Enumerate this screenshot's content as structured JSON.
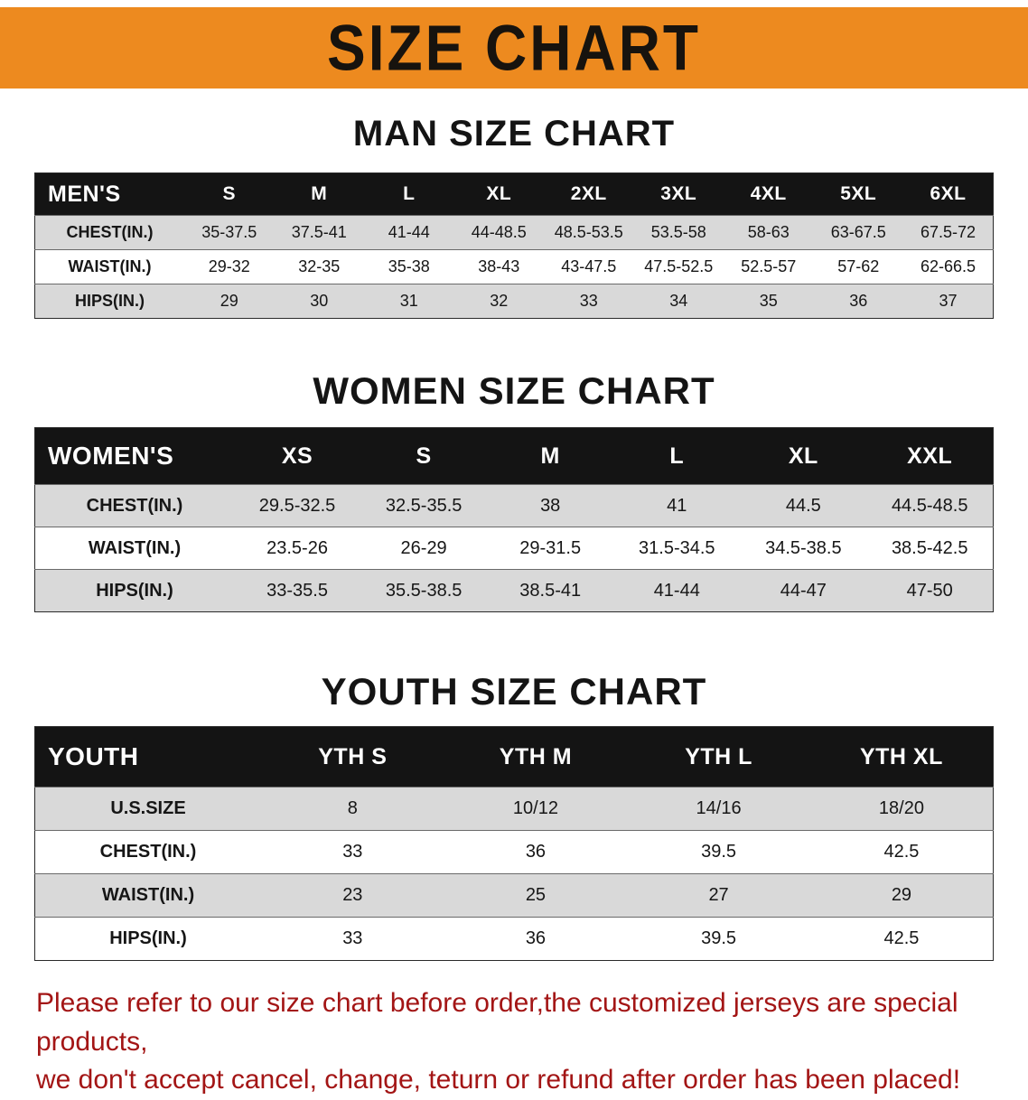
{
  "banner": {
    "title": "SIZE CHART"
  },
  "colors": {
    "banner-bg": "#ED8A1F",
    "table-header-bg": "#141414",
    "row-stripe": "#d9d9d9",
    "footer-red": "#A31515"
  },
  "sections": [
    {
      "heading": "MAN SIZE CHART",
      "table": {
        "header": [
          "MEN'S",
          "S",
          "M",
          "L",
          "XL",
          "2XL",
          "3XL",
          "4XL",
          "5XL",
          "6XL"
        ],
        "rows": [
          [
            "CHEST(IN.)",
            "35-37.5",
            "37.5-41",
            "41-44",
            "44-48.5",
            "48.5-53.5",
            "53.5-58",
            "58-63",
            "63-67.5",
            "67.5-72"
          ],
          [
            "WAIST(IN.)",
            "29-32",
            "32-35",
            "35-38",
            "38-43",
            "43-47.5",
            "47.5-52.5",
            "52.5-57",
            "57-62",
            "62-66.5"
          ],
          [
            "HIPS(IN.)",
            "29",
            "30",
            "31",
            "32",
            "33",
            "34",
            "35",
            "36",
            "37"
          ]
        ]
      }
    },
    {
      "heading": "WOMEN SIZE CHART",
      "table": {
        "header": [
          "WOMEN'S",
          "XS",
          "S",
          "M",
          "L",
          "XL",
          "XXL"
        ],
        "rows": [
          [
            "CHEST(IN.)",
            "29.5-32.5",
            "32.5-35.5",
            "38",
            "41",
            "44.5",
            "44.5-48.5"
          ],
          [
            "WAIST(IN.)",
            "23.5-26",
            "26-29",
            "29-31.5",
            "31.5-34.5",
            "34.5-38.5",
            "38.5-42.5"
          ],
          [
            "HIPS(IN.)",
            "33-35.5",
            "35.5-38.5",
            "38.5-41",
            "41-44",
            "44-47",
            "47-50"
          ]
        ]
      }
    },
    {
      "heading": "YOUTH SIZE CHART",
      "table": {
        "header": [
          "YOUTH",
          "YTH S",
          "YTH M",
          "YTH L",
          "YTH XL"
        ],
        "rows": [
          [
            "U.S.SIZE",
            "8",
            "10/12",
            "14/16",
            "18/20"
          ],
          [
            "CHEST(IN.)",
            "33",
            "36",
            "39.5",
            "42.5"
          ],
          [
            "WAIST(IN.)",
            "23",
            "25",
            "27",
            "29"
          ],
          [
            "HIPS(IN.)",
            "33",
            "36",
            "39.5",
            "42.5"
          ]
        ]
      }
    }
  ],
  "footer": {
    "line1": "Please refer to our size chart before order,the customized jerseys are special products,",
    "line2": "we don't accept cancel, change, teturn or refund after order has been placed!"
  }
}
